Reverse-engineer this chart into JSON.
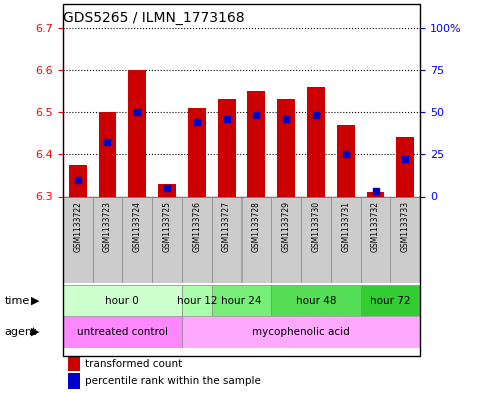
{
  "title": "GDS5265 / ILMN_1773168",
  "samples": [
    "GSM1133722",
    "GSM1133723",
    "GSM1133724",
    "GSM1133725",
    "GSM1133726",
    "GSM1133727",
    "GSM1133728",
    "GSM1133729",
    "GSM1133730",
    "GSM1133731",
    "GSM1133732",
    "GSM1133733"
  ],
  "transformed_count": [
    6.375,
    6.5,
    6.6,
    6.33,
    6.51,
    6.53,
    6.55,
    6.53,
    6.56,
    6.47,
    6.31,
    6.44
  ],
  "percentile_rank": [
    10,
    32,
    50,
    5,
    44,
    46,
    48,
    46,
    48,
    25,
    3,
    22
  ],
  "ylim": [
    6.3,
    6.7
  ],
  "y2lim": [
    0,
    100
  ],
  "yticks": [
    6.3,
    6.4,
    6.5,
    6.6,
    6.7
  ],
  "y2ticks": [
    0,
    25,
    50,
    75,
    100
  ],
  "bar_color": "#cc0000",
  "dot_color": "#0000cc",
  "time_groups": [
    {
      "label": "hour 0",
      "start": 0,
      "end": 3,
      "color": "#ccffcc"
    },
    {
      "label": "hour 12",
      "start": 4,
      "end": 4,
      "color": "#aaffaa"
    },
    {
      "label": "hour 24",
      "start": 5,
      "end": 6,
      "color": "#77ee77"
    },
    {
      "label": "hour 48",
      "start": 7,
      "end": 9,
      "color": "#55dd55"
    },
    {
      "label": "hour 72",
      "start": 10,
      "end": 11,
      "color": "#33cc33"
    }
  ],
  "agent_groups": [
    {
      "label": "untreated control",
      "start": 0,
      "end": 3,
      "color": "#ff88ff"
    },
    {
      "label": "mycophenolic acid",
      "start": 4,
      "end": 11,
      "color": "#ffaaff"
    }
  ],
  "ybase": 6.3
}
